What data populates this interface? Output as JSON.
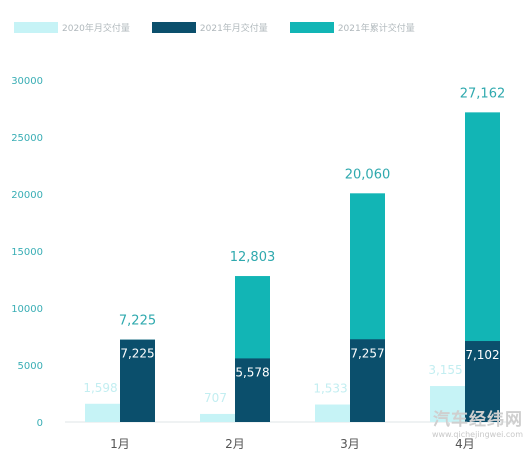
{
  "chart_data": {
    "type": "bar",
    "categories": [
      "1月",
      "2月",
      "3月",
      "4月"
    ],
    "series": [
      {
        "name": "2020年月交付量",
        "values": [
          1598,
          707,
          1533,
          3155
        ],
        "color": "#c6f3f6"
      },
      {
        "name": "2021年月交付量",
        "values": [
          7225,
          5578,
          7257,
          7102
        ],
        "color": "#0b4f6c"
      },
      {
        "name": "2021年累计交付量",
        "values": [
          7225,
          12803,
          20060,
          27162
        ],
        "color": "#12b5b5"
      }
    ],
    "data_labels": {
      "s2020": [
        "1,598",
        "707",
        "1,533",
        "3,155"
      ],
      "s2021": [
        "7,225",
        "5,578",
        "7,257",
        "7,102"
      ],
      "cumulative": [
        "7,225",
        "12,803",
        "20,060",
        "27,162"
      ]
    },
    "yticks": [
      0,
      5000,
      10000,
      15000,
      20000,
      25000,
      30000
    ],
    "ylim": [
      0,
      30000
    ],
    "title": "",
    "xlabel": "",
    "ylabel": "",
    "grid": false,
    "legend_position": "top-left"
  },
  "legend": {
    "items": [
      "2020年月交付量",
      "2021年月交付量",
      "2021年累计交付量"
    ]
  },
  "watermark": {
    "text": "汽车经纬网",
    "url": "www.qichejingwei.com"
  }
}
